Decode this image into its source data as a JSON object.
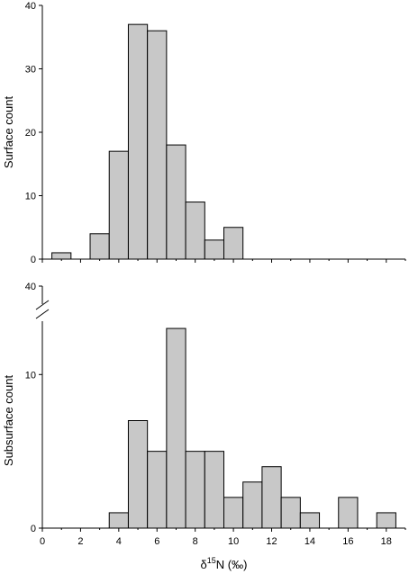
{
  "chart_data": [
    {
      "type": "bar",
      "panel": "top",
      "ylabel": "Surface count",
      "xlabel": "",
      "xlim": [
        0,
        19
      ],
      "ylim": [
        0,
        40
      ],
      "yticks": [
        0,
        10,
        20,
        30,
        40
      ],
      "xticks": [
        0,
        2,
        4,
        6,
        8,
        10,
        12,
        14,
        16,
        18
      ],
      "bar_color": "#c8c8c8",
      "bins": [
        {
          "start": 0.5,
          "end": 1.5,
          "value": 1
        },
        {
          "start": 2.5,
          "end": 3.5,
          "value": 4
        },
        {
          "start": 3.5,
          "end": 4.5,
          "value": 17
        },
        {
          "start": 4.5,
          "end": 5.5,
          "value": 37
        },
        {
          "start": 5.5,
          "end": 6.5,
          "value": 36
        },
        {
          "start": 6.5,
          "end": 7.5,
          "value": 18
        },
        {
          "start": 7.5,
          "end": 8.5,
          "value": 9
        },
        {
          "start": 8.5,
          "end": 9.5,
          "value": 3
        },
        {
          "start": 9.5,
          "end": 10.5,
          "value": 5
        }
      ]
    },
    {
      "type": "bar",
      "panel": "bottom",
      "ylabel": "Subsurface count",
      "xlabel": "δ¹⁵N (‰)",
      "xlabel_parts": {
        "pre": "δ",
        "sup": "15",
        "post": "N (‰)"
      },
      "xlim": [
        0,
        19
      ],
      "ylim": [
        0,
        14
      ],
      "axis_break": true,
      "yticks": [
        0,
        10
      ],
      "ytick_above_break": 40,
      "xticks": [
        0,
        2,
        4,
        6,
        8,
        10,
        12,
        14,
        16,
        18
      ],
      "bar_color": "#c8c8c8",
      "bins": [
        {
          "start": 3.5,
          "end": 4.5,
          "value": 1
        },
        {
          "start": 4.5,
          "end": 5.5,
          "value": 7
        },
        {
          "start": 5.5,
          "end": 6.5,
          "value": 5
        },
        {
          "start": 6.5,
          "end": 7.5,
          "value": 13
        },
        {
          "start": 7.5,
          "end": 8.5,
          "value": 5
        },
        {
          "start": 8.5,
          "end": 9.5,
          "value": 5
        },
        {
          "start": 9.5,
          "end": 10.5,
          "value": 2
        },
        {
          "start": 10.5,
          "end": 11.5,
          "value": 3
        },
        {
          "start": 11.5,
          "end": 12.5,
          "value": 4
        },
        {
          "start": 12.5,
          "end": 13.5,
          "value": 2
        },
        {
          "start": 13.5,
          "end": 14.5,
          "value": 1
        },
        {
          "start": 15.5,
          "end": 16.5,
          "value": 2
        },
        {
          "start": 17.5,
          "end": 18.5,
          "value": 1
        }
      ]
    }
  ]
}
